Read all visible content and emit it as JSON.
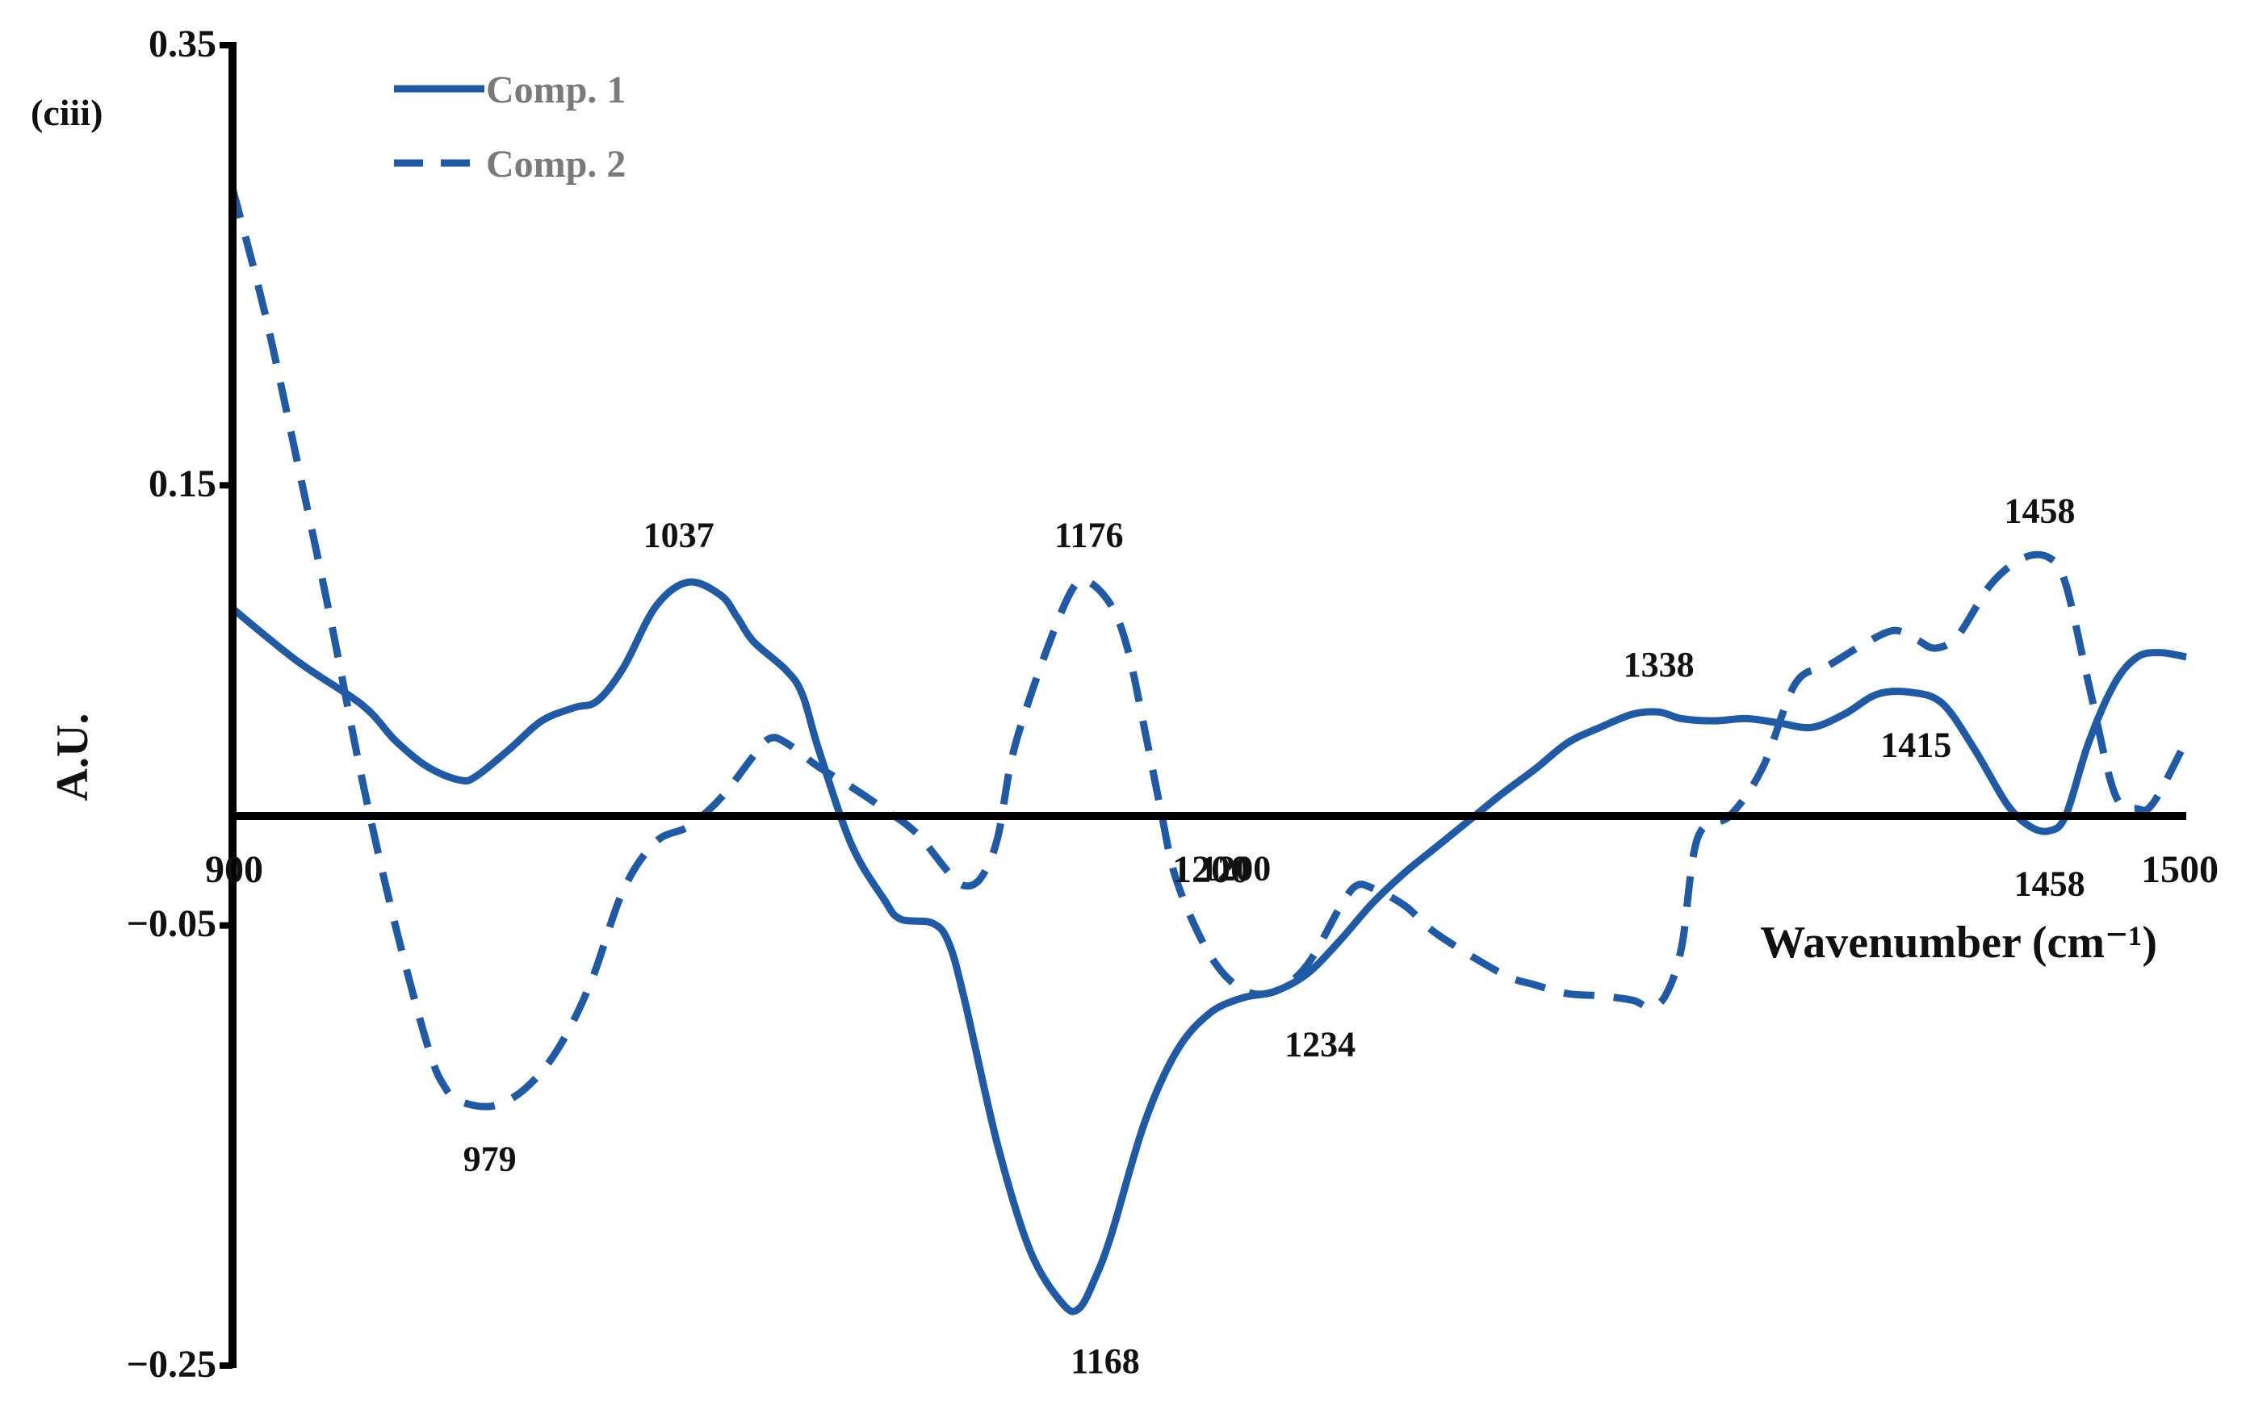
{
  "panel_label": "(ciii)",
  "chart_data": {
    "type": "line",
    "title": "",
    "xlabel": "Wavenumber (cm⁻¹)",
    "ylabel": "A.U.",
    "xlim": [
      900,
      1500
    ],
    "ylim": [
      -0.25,
      0.35
    ],
    "x_tick_labels": [
      "900",
      "1200",
      "1500"
    ],
    "y_ticks": [
      0.35,
      0.15,
      -0.05,
      -0.25
    ],
    "y_tick_labels": [
      "0.35",
      "0.15",
      "−0.05",
      "−0.25"
    ],
    "grid": false,
    "legend_position": "top-left",
    "colors": {
      "series": "#1f5aa6",
      "axis": "#000000"
    },
    "series": [
      {
        "name": "Comp. 1",
        "dash": "solid",
        "points": [
          [
            900,
            0.094
          ],
          [
            920,
            0.07
          ],
          [
            940,
            0.05
          ],
          [
            950,
            0.034
          ],
          [
            960,
            0.022
          ],
          [
            970,
            0.016
          ],
          [
            975,
            0.018
          ],
          [
            985,
            0.03
          ],
          [
            995,
            0.043
          ],
          [
            1005,
            0.049
          ],
          [
            1012,
            0.052
          ],
          [
            1020,
            0.067
          ],
          [
            1030,
            0.095
          ],
          [
            1040,
            0.106
          ],
          [
            1050,
            0.1
          ],
          [
            1055,
            0.09
          ],
          [
            1060,
            0.079
          ],
          [
            1070,
            0.066
          ],
          [
            1075,
            0.055
          ],
          [
            1080,
            0.03
          ],
          [
            1090,
            -0.013
          ],
          [
            1100,
            -0.038
          ],
          [
            1105,
            -0.047
          ],
          [
            1115,
            -0.049
          ],
          [
            1120,
            -0.058
          ],
          [
            1125,
            -0.085
          ],
          [
            1135,
            -0.15
          ],
          [
            1145,
            -0.198
          ],
          [
            1155,
            -0.222
          ],
          [
            1160,
            -0.224
          ],
          [
            1165,
            -0.21
          ],
          [
            1170,
            -0.19
          ],
          [
            1180,
            -0.14
          ],
          [
            1190,
            -0.107
          ],
          [
            1200,
            -0.09
          ],
          [
            1210,
            -0.083
          ],
          [
            1220,
            -0.08
          ],
          [
            1230,
            -0.072
          ],
          [
            1240,
            -0.057
          ],
          [
            1250,
            -0.04
          ],
          [
            1260,
            -0.026
          ],
          [
            1270,
            -0.014
          ],
          [
            1280,
            -0.002
          ],
          [
            1290,
            0.01
          ],
          [
            1300,
            0.021
          ],
          [
            1310,
            0.033
          ],
          [
            1320,
            0.04
          ],
          [
            1330,
            0.046
          ],
          [
            1338,
            0.047
          ],
          [
            1345,
            0.044
          ],
          [
            1355,
            0.043
          ],
          [
            1365,
            0.044
          ],
          [
            1375,
            0.042
          ],
          [
            1385,
            0.04
          ],
          [
            1395,
            0.046
          ],
          [
            1405,
            0.055
          ],
          [
            1415,
            0.056
          ],
          [
            1425,
            0.051
          ],
          [
            1435,
            0.03
          ],
          [
            1445,
            0.005
          ],
          [
            1452,
            -0.005
          ],
          [
            1458,
            -0.007
          ],
          [
            1463,
            0.0
          ],
          [
            1470,
            0.033
          ],
          [
            1478,
            0.06
          ],
          [
            1485,
            0.072
          ],
          [
            1492,
            0.074
          ],
          [
            1500,
            0.072
          ]
        ]
      },
      {
        "name": "Comp. 2",
        "dash": "dashed",
        "points": [
          [
            900,
            0.285
          ],
          [
            910,
            0.228
          ],
          [
            920,
            0.16
          ],
          [
            930,
            0.09
          ],
          [
            940,
            0.015
          ],
          [
            950,
            -0.05
          ],
          [
            960,
            -0.105
          ],
          [
            965,
            -0.123
          ],
          [
            970,
            -0.13
          ],
          [
            980,
            -0.132
          ],
          [
            990,
            -0.124
          ],
          [
            1000,
            -0.106
          ],
          [
            1010,
            -0.076
          ],
          [
            1020,
            -0.034
          ],
          [
            1030,
            -0.012
          ],
          [
            1040,
            -0.005
          ],
          [
            1050,
            0.008
          ],
          [
            1060,
            0.027
          ],
          [
            1065,
            0.035
          ],
          [
            1070,
            0.033
          ],
          [
            1080,
            0.022
          ],
          [
            1090,
            0.013
          ],
          [
            1100,
            0.003
          ],
          [
            1110,
            -0.008
          ],
          [
            1120,
            -0.026
          ],
          [
            1125,
            -0.032
          ],
          [
            1130,
            -0.028
          ],
          [
            1135,
            -0.01
          ],
          [
            1140,
            0.03
          ],
          [
            1150,
            0.075
          ],
          [
            1158,
            0.103
          ],
          [
            1163,
            0.106
          ],
          [
            1170,
            0.095
          ],
          [
            1175,
            0.075
          ],
          [
            1180,
            0.04
          ],
          [
            1185,
            0.003
          ],
          [
            1190,
            -0.03
          ],
          [
            1200,
            -0.063
          ],
          [
            1210,
            -0.079
          ],
          [
            1220,
            -0.08
          ],
          [
            1230,
            -0.068
          ],
          [
            1240,
            -0.042
          ],
          [
            1245,
            -0.032
          ],
          [
            1250,
            -0.033
          ],
          [
            1260,
            -0.041
          ],
          [
            1270,
            -0.054
          ],
          [
            1290,
            -0.072
          ],
          [
            1300,
            -0.077
          ],
          [
            1310,
            -0.081
          ],
          [
            1320,
            -0.082
          ],
          [
            1330,
            -0.084
          ],
          [
            1335,
            -0.087
          ],
          [
            1340,
            -0.082
          ],
          [
            1345,
            -0.06
          ],
          [
            1350,
            -0.01
          ],
          [
            1360,
            0.0
          ],
          [
            1370,
            0.022
          ],
          [
            1380,
            0.06
          ],
          [
            1390,
            0.068
          ],
          [
            1400,
            0.077
          ],
          [
            1410,
            0.084
          ],
          [
            1417,
            0.08
          ],
          [
            1423,
            0.076
          ],
          [
            1430,
            0.082
          ],
          [
            1440,
            0.105
          ],
          [
            1450,
            0.117
          ],
          [
            1458,
            0.117
          ],
          [
            1463,
            0.105
          ],
          [
            1470,
            0.06
          ],
          [
            1478,
            0.01
          ],
          [
            1485,
            0.003
          ],
          [
            1490,
            0.006
          ],
          [
            1500,
            0.034
          ]
        ]
      }
    ],
    "annotations": [
      {
        "text": "1037",
        "x": 1037,
        "y": 0.106,
        "position": "above"
      },
      {
        "text": "1176",
        "x": 1163,
        "y": 0.106,
        "position": "above"
      },
      {
        "text": "1338",
        "x": 1338,
        "y": 0.047,
        "position": "above"
      },
      {
        "text": "1415",
        "x": 1417,
        "y": 0.056,
        "position": "below"
      },
      {
        "text": "1458",
        "x": 1455,
        "y": 0.117,
        "position": "above"
      },
      {
        "text": "979",
        "x": 979,
        "y": -0.132,
        "position": "below"
      },
      {
        "text": "1168",
        "x": 1168,
        "y": -0.224,
        "position": "below"
      },
      {
        "text": "1234",
        "x": 1234,
        "y": -0.08,
        "position": "below"
      },
      {
        "text": "1200",
        "x": 1208,
        "y": 0.0,
        "position": "below"
      },
      {
        "text": "1458",
        "x": 1458,
        "y": -0.007,
        "position": "below"
      }
    ]
  }
}
